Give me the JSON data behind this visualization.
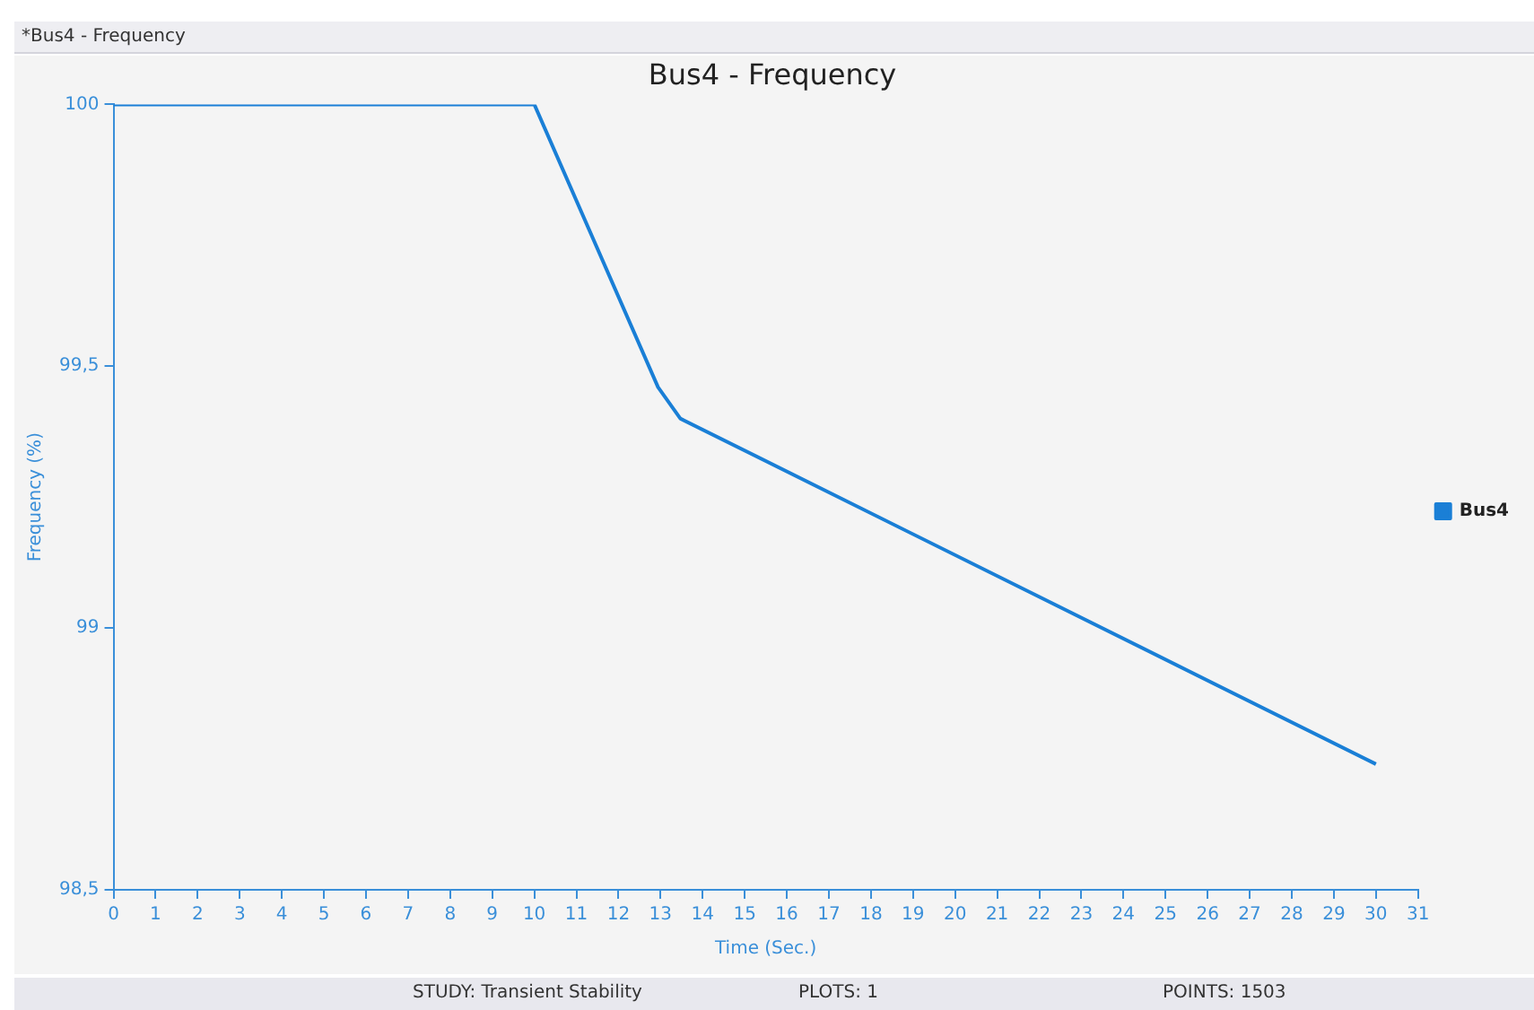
{
  "chart_data": {
    "type": "line",
    "title": "Bus4 - Frequency",
    "xlabel": "Time (Sec.)",
    "ylabel": "Frequency (%)",
    "x": [
      0,
      10,
      12.94,
      13.47,
      30
    ],
    "series": [
      {
        "name": "Bus4",
        "color": "#1a7fd6",
        "values": [
          100,
          100,
          99.46,
          99.4,
          98.74
        ]
      }
    ],
    "xlim": [
      0,
      31
    ],
    "xticks": [
      0,
      1,
      2,
      3,
      4,
      5,
      6,
      7,
      8,
      9,
      10,
      11,
      12,
      13,
      14,
      15,
      16,
      17,
      18,
      19,
      20,
      21,
      22,
      23,
      24,
      25,
      26,
      27,
      28,
      29,
      30,
      31
    ],
    "ylim": [
      98.5,
      100
    ],
    "yticks": [
      {
        "value": 98.5,
        "label": "98,5"
      },
      {
        "value": 99,
        "label": "99"
      },
      {
        "value": 99.5,
        "label": "99,5"
      },
      {
        "value": 100,
        "label": "100"
      }
    ],
    "grid": false,
    "legend": "right",
    "marker": "none",
    "line_style": "solid",
    "annotations": [
      "*Bus4 - Frequency",
      "STUDY: Transient Stability",
      "PLOTS: 1",
      "POINTS: 1503"
    ]
  }
}
